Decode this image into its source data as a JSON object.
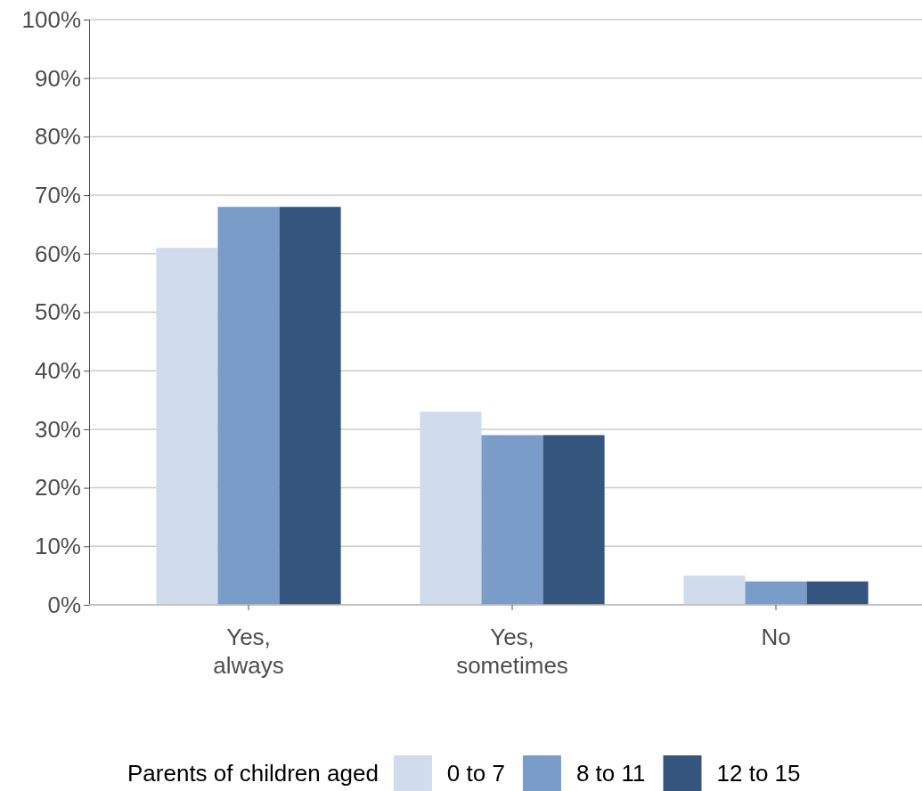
{
  "chart_data": {
    "type": "bar",
    "categories": [
      "Yes, always",
      "Yes, sometimes",
      "No"
    ],
    "series": [
      {
        "name": "0 to 7",
        "color": "#d0dcec",
        "values": [
          61,
          33,
          5
        ]
      },
      {
        "name": "8 to 11",
        "color": "#7a9cc9",
        "values": [
          68,
          29,
          4
        ]
      },
      {
        "name": "12 to 15",
        "color": "#34557e",
        "values": [
          68,
          29,
          4
        ]
      }
    ],
    "ylim": [
      0,
      100
    ],
    "yticks": [
      {
        "value": 0,
        "label": "0%"
      },
      {
        "value": 10,
        "label": "10%"
      },
      {
        "value": 20,
        "label": "20%"
      },
      {
        "value": 30,
        "label": "30%"
      },
      {
        "value": 40,
        "label": "40%"
      },
      {
        "value": 50,
        "label": "50%"
      },
      {
        "value": 60,
        "label": "60%"
      },
      {
        "value": 70,
        "label": "70%"
      },
      {
        "value": 80,
        "label": "80%"
      },
      {
        "value": 90,
        "label": "90%"
      },
      {
        "value": 100,
        "label": "100%"
      }
    ],
    "grid": "y",
    "legend": "bottom",
    "legend_title": "Parents of children aged"
  }
}
